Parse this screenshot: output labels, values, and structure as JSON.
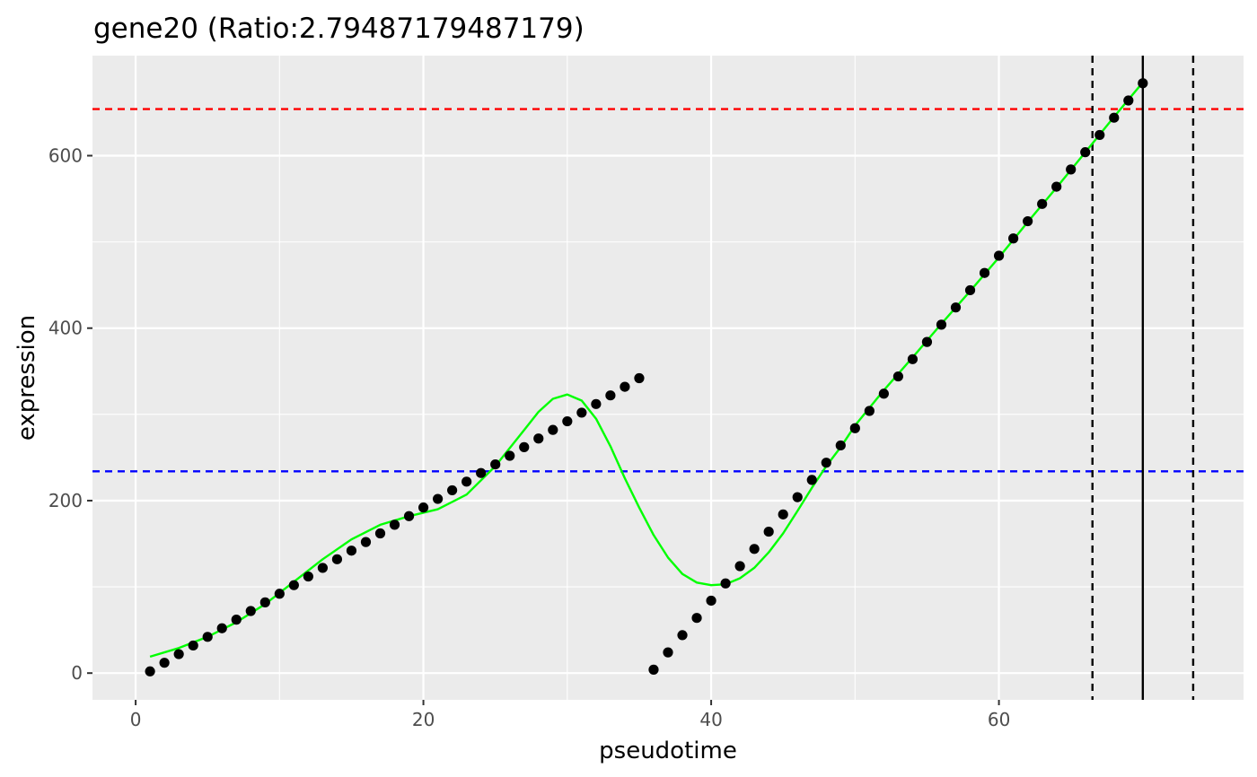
{
  "chart_data": {
    "type": "scatter",
    "title": "gene20 (Ratio:2.79487179487179)",
    "xlabel": "pseudotime",
    "ylabel": "expression",
    "xlim": [
      -3,
      77
    ],
    "ylim": [
      -31,
      716
    ],
    "x_ticks": [
      0,
      20,
      40,
      60
    ],
    "y_ticks": [
      0,
      200,
      400,
      600
    ],
    "x_tick_labels": [
      "0",
      "20",
      "40",
      "60"
    ],
    "y_tick_labels": [
      "0",
      "200",
      "400",
      "600"
    ],
    "grid": true,
    "legend": "none",
    "series": [
      {
        "type": "scatter",
        "color": "#000000",
        "x": [
          1,
          2,
          3,
          4,
          5,
          6,
          7,
          8,
          9,
          10,
          11,
          12,
          13,
          14,
          15,
          16,
          17,
          18,
          19,
          20,
          21,
          22,
          23,
          24,
          25,
          26,
          27,
          28,
          29,
          30,
          31,
          32,
          33,
          34,
          35,
          36,
          37,
          38,
          39,
          40,
          41,
          42,
          43,
          44,
          45,
          46,
          47,
          48,
          49,
          50,
          51,
          52,
          53,
          54,
          55,
          56,
          57,
          58,
          59,
          60,
          61,
          62,
          63,
          64,
          65,
          66,
          67,
          68,
          69,
          70
        ],
        "y": [
          2,
          12,
          22,
          32,
          42,
          52,
          62,
          72,
          82,
          92,
          102,
          112,
          122,
          132,
          142,
          152,
          162,
          172,
          182,
          192,
          202,
          212,
          222,
          232,
          242,
          252,
          262,
          272,
          282,
          292,
          302,
          312,
          322,
          332,
          342,
          4,
          24,
          44,
          64,
          84,
          104,
          124,
          144,
          164,
          184,
          204,
          224,
          244,
          264,
          284,
          304,
          324,
          344,
          364,
          384,
          404,
          424,
          444,
          464,
          484,
          504,
          524,
          544,
          564,
          584,
          604,
          624,
          644,
          664,
          684
        ]
      },
      {
        "type": "line",
        "color": "#00ff00",
        "x": [
          1,
          3,
          5,
          7,
          9,
          11,
          13,
          15,
          17,
          19,
          21,
          23,
          25,
          27,
          28,
          29,
          30,
          31,
          32,
          33,
          34,
          35,
          36,
          37,
          38,
          39,
          40,
          41,
          42,
          43,
          44,
          45,
          46,
          47,
          48,
          49,
          50,
          52,
          54,
          56,
          58,
          60,
          62,
          64,
          66,
          68,
          70
        ],
        "y": [
          19,
          29,
          42,
          59,
          80,
          106,
          132,
          155,
          172,
          182,
          190,
          207,
          240,
          282,
          303,
          318,
          323,
          316,
          295,
          263,
          226,
          192,
          160,
          134,
          115,
          105,
          102,
          103,
          110,
          122,
          140,
          162,
          188,
          215,
          240,
          262,
          287,
          328,
          366,
          405,
          443,
          482,
          523,
          563,
          604,
          645,
          685
        ]
      }
    ],
    "reference_lines": [
      {
        "orientation": "horizontal",
        "value": 654,
        "color": "#ff0000",
        "style": "dashed"
      },
      {
        "orientation": "horizontal",
        "value": 234,
        "color": "#0000ff",
        "style": "dashed"
      },
      {
        "orientation": "vertical",
        "value": 70,
        "color": "#000000",
        "style": "solid"
      },
      {
        "orientation": "vertical",
        "value": 66.5,
        "color": "#000000",
        "style": "dashed"
      },
      {
        "orientation": "vertical",
        "value": 73.5,
        "color": "#000000",
        "style": "dashed"
      }
    ]
  }
}
